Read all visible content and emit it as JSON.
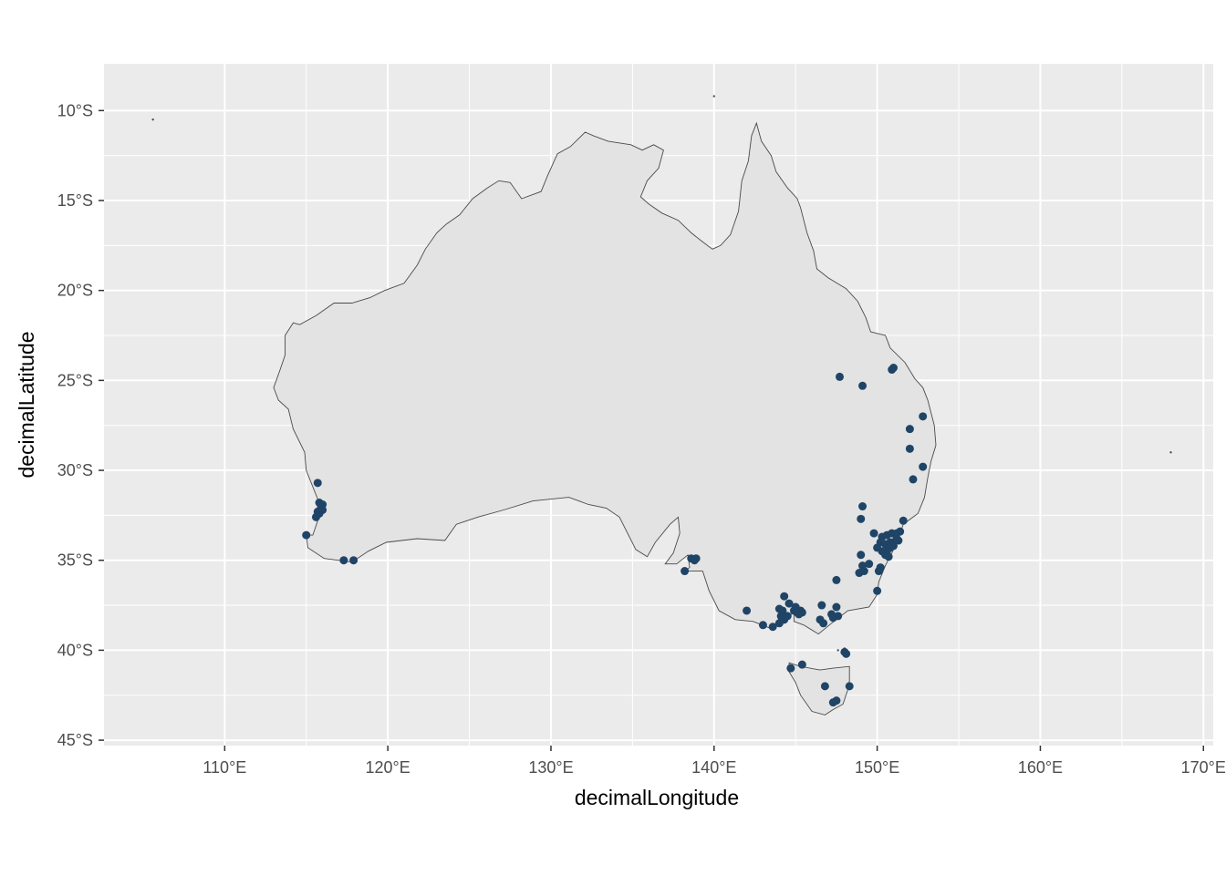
{
  "chart_data": {
    "type": "scatter",
    "xlabel": "decimalLongitude",
    "ylabel": "decimalLatitude",
    "xlim": [
      102.6,
      170.6
    ],
    "ylim": [
      -45.3,
      -7.4
    ],
    "x_ticks": [
      110,
      120,
      130,
      140,
      150,
      160,
      170
    ],
    "x_tick_labels": [
      "110°E",
      "120°E",
      "130°E",
      "140°E",
      "150°E",
      "160°E",
      "170°E"
    ],
    "y_ticks": [
      -10,
      -15,
      -20,
      -25,
      -30,
      -35,
      -40,
      -45
    ],
    "y_tick_labels": [
      "10°S",
      "15°S",
      "20°S",
      "25°S",
      "30°S",
      "35°S",
      "40°S",
      "45°S"
    ],
    "grid": true,
    "basemap": "Australia coastline",
    "series": [
      {
        "name": "occurrences",
        "points": [
          [
            147.7,
            -24.8
          ],
          [
            149.1,
            -25.3
          ],
          [
            150.9,
            -24.4
          ],
          [
            151.0,
            -24.3
          ],
          [
            152.8,
            -27.0
          ],
          [
            152.0,
            -27.7
          ],
          [
            152.0,
            -28.8
          ],
          [
            152.8,
            -29.8
          ],
          [
            152.2,
            -30.5
          ],
          [
            149.1,
            -32.0
          ],
          [
            149.0,
            -32.7
          ],
          [
            151.6,
            -32.8
          ],
          [
            149.8,
            -33.5
          ],
          [
            150.3,
            -33.7
          ],
          [
            150.6,
            -33.6
          ],
          [
            150.9,
            -33.5
          ],
          [
            151.2,
            -33.5
          ],
          [
            151.4,
            -33.4
          ],
          [
            150.2,
            -34.0
          ],
          [
            150.5,
            -34.1
          ],
          [
            150.8,
            -34.0
          ],
          [
            151.0,
            -34.0
          ],
          [
            151.2,
            -33.8
          ],
          [
            151.3,
            -33.9
          ],
          [
            150.0,
            -34.3
          ],
          [
            150.3,
            -34.5
          ],
          [
            150.6,
            -34.5
          ],
          [
            150.8,
            -34.3
          ],
          [
            151.0,
            -34.2
          ],
          [
            150.5,
            -34.7
          ],
          [
            150.7,
            -34.8
          ],
          [
            149.0,
            -34.7
          ],
          [
            149.1,
            -35.3
          ],
          [
            149.2,
            -35.6
          ],
          [
            148.9,
            -35.7
          ],
          [
            149.5,
            -35.2
          ],
          [
            150.2,
            -35.4
          ],
          [
            150.1,
            -35.6
          ],
          [
            150.0,
            -36.7
          ],
          [
            147.5,
            -36.1
          ],
          [
            115.7,
            -30.7
          ],
          [
            115.8,
            -31.8
          ],
          [
            116.0,
            -31.9
          ],
          [
            115.9,
            -32.1
          ],
          [
            116.0,
            -32.2
          ],
          [
            115.7,
            -32.3
          ],
          [
            115.8,
            -32.4
          ],
          [
            115.6,
            -32.6
          ],
          [
            115.0,
            -33.6
          ],
          [
            117.3,
            -35.0
          ],
          [
            117.9,
            -35.0
          ],
          [
            138.6,
            -34.9
          ],
          [
            138.9,
            -34.9
          ],
          [
            138.8,
            -35.0
          ],
          [
            138.2,
            -35.6
          ],
          [
            142.0,
            -37.8
          ],
          [
            143.0,
            -38.6
          ],
          [
            143.6,
            -38.7
          ],
          [
            144.0,
            -38.5
          ],
          [
            144.3,
            -37.0
          ],
          [
            144.0,
            -37.7
          ],
          [
            144.2,
            -37.8
          ],
          [
            144.1,
            -38.1
          ],
          [
            144.3,
            -38.3
          ],
          [
            144.5,
            -38.1
          ],
          [
            144.6,
            -37.4
          ],
          [
            144.9,
            -37.8
          ],
          [
            145.0,
            -37.6
          ],
          [
            145.1,
            -37.9
          ],
          [
            145.3,
            -37.8
          ],
          [
            145.2,
            -38.0
          ],
          [
            145.4,
            -37.9
          ],
          [
            146.6,
            -37.5
          ],
          [
            146.5,
            -38.3
          ],
          [
            146.7,
            -38.5
          ],
          [
            147.2,
            -38.0
          ],
          [
            147.5,
            -37.6
          ],
          [
            147.6,
            -38.1
          ],
          [
            147.3,
            -38.2
          ],
          [
            148.0,
            -40.1
          ],
          [
            148.1,
            -40.2
          ],
          [
            145.4,
            -40.8
          ],
          [
            144.7,
            -41.0
          ],
          [
            146.8,
            -42.0
          ],
          [
            148.3,
            -42.0
          ],
          [
            147.3,
            -42.9
          ],
          [
            147.5,
            -42.8
          ]
        ]
      }
    ]
  },
  "colors": {
    "panel_bg": "#ebebeb",
    "grid": "#ffffff",
    "land_fill": "#e3e3e3",
    "coast_stroke": "#4a4a4a",
    "point": "#1f4466",
    "tick": "#333333",
    "tick_label": "#4d4d4d"
  }
}
